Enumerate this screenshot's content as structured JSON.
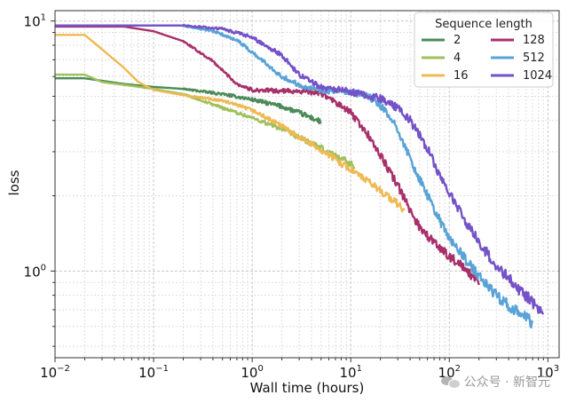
{
  "chart_data": {
    "type": "line",
    "x_scale": "log",
    "y_scale": "log",
    "xlim": [
      0.01,
      1300
    ],
    "ylim": [
      0.45,
      11
    ],
    "xlabel": "Wall time (hours)",
    "ylabel": "loss",
    "x_ticks": [
      {
        "value": 0.01,
        "base": "10",
        "exp": "−2"
      },
      {
        "value": 0.1,
        "base": "10",
        "exp": "−1"
      },
      {
        "value": 1,
        "base": "10",
        "exp": "0"
      },
      {
        "value": 10,
        "base": "10",
        "exp": "1"
      },
      {
        "value": 100,
        "base": "10",
        "exp": "2"
      },
      {
        "value": 1000,
        "base": "10",
        "exp": "3"
      }
    ],
    "y_ticks": [
      {
        "value": 1,
        "base": "10",
        "exp": "0"
      },
      {
        "value": 10,
        "base": "10",
        "exp": "1"
      }
    ],
    "grid": true,
    "legend": {
      "title": "Sequence length",
      "placement": "top-right",
      "columns": 2
    },
    "series": [
      {
        "name": "2",
        "color": "#4b8b57",
        "points": [
          [
            0.01,
            5.9
          ],
          [
            0.02,
            5.9
          ],
          [
            0.05,
            5.6
          ],
          [
            0.1,
            5.45
          ],
          [
            0.2,
            5.35
          ],
          [
            0.5,
            5.1
          ],
          [
            1,
            4.85
          ],
          [
            2,
            4.55
          ],
          [
            3,
            4.3
          ],
          [
            5,
            3.95
          ]
        ]
      },
      {
        "name": "4",
        "color": "#9fc05a",
        "points": [
          [
            0.01,
            6.1
          ],
          [
            0.02,
            6.1
          ],
          [
            0.03,
            5.7
          ],
          [
            0.06,
            5.5
          ],
          [
            0.1,
            5.35
          ],
          [
            0.2,
            5.1
          ],
          [
            0.5,
            4.5
          ],
          [
            1,
            4.1
          ],
          [
            2,
            3.7
          ],
          [
            5,
            3.1
          ],
          [
            10,
            2.7
          ],
          [
            11,
            2.6
          ]
        ]
      },
      {
        "name": "16",
        "color": "#efb954",
        "points": [
          [
            0.01,
            8.8
          ],
          [
            0.02,
            8.8
          ],
          [
            0.03,
            7.7
          ],
          [
            0.05,
            6.5
          ],
          [
            0.07,
            5.7
          ],
          [
            0.1,
            5.3
          ],
          [
            0.2,
            5.05
          ],
          [
            0.5,
            4.8
          ],
          [
            1,
            4.4
          ],
          [
            2,
            3.8
          ],
          [
            5,
            3.05
          ],
          [
            10,
            2.55
          ],
          [
            20,
            2.1
          ],
          [
            30,
            1.85
          ],
          [
            35,
            1.75
          ]
        ]
      },
      {
        "name": "128",
        "color": "#a8306a",
        "points": [
          [
            0.01,
            9.5
          ],
          [
            0.05,
            9.5
          ],
          [
            0.1,
            9.1
          ],
          [
            0.2,
            8.3
          ],
          [
            0.4,
            6.9
          ],
          [
            0.7,
            5.6
          ],
          [
            1,
            5.3
          ],
          [
            2,
            5.25
          ],
          [
            3,
            5.25
          ],
          [
            5,
            5.15
          ],
          [
            10,
            4.3
          ],
          [
            15,
            3.5
          ],
          [
            20,
            2.9
          ],
          [
            30,
            2.2
          ],
          [
            40,
            1.75
          ],
          [
            50,
            1.5
          ],
          [
            70,
            1.3
          ],
          [
            100,
            1.15
          ],
          [
            150,
            1.0
          ],
          [
            200,
            0.88
          ]
        ]
      },
      {
        "name": "512",
        "color": "#5aa3d6",
        "points": [
          [
            0.01,
            9.6
          ],
          [
            0.2,
            9.6
          ],
          [
            0.4,
            9.1
          ],
          [
            0.7,
            8.4
          ],
          [
            1,
            7.5
          ],
          [
            2,
            6.0
          ],
          [
            3,
            5.55
          ],
          [
            5,
            5.3
          ],
          [
            10,
            5.15
          ],
          [
            15,
            5.0
          ],
          [
            20,
            4.6
          ],
          [
            30,
            3.7
          ],
          [
            40,
            2.8
          ],
          [
            60,
            2.0
          ],
          [
            80,
            1.6
          ],
          [
            100,
            1.35
          ],
          [
            150,
            1.1
          ],
          [
            200,
            0.95
          ],
          [
            300,
            0.8
          ],
          [
            500,
            0.68
          ],
          [
            700,
            0.62
          ]
        ]
      },
      {
        "name": "1024",
        "color": "#7452c7",
        "points": [
          [
            0.01,
            9.6
          ],
          [
            0.2,
            9.6
          ],
          [
            0.5,
            9.3
          ],
          [
            1,
            8.6
          ],
          [
            2,
            7.3
          ],
          [
            3,
            6.1
          ],
          [
            5,
            5.45
          ],
          [
            10,
            5.2
          ],
          [
            20,
            4.9
          ],
          [
            30,
            4.5
          ],
          [
            40,
            4.0
          ],
          [
            60,
            3.1
          ],
          [
            80,
            2.4
          ],
          [
            100,
            2.05
          ],
          [
            150,
            1.55
          ],
          [
            200,
            1.3
          ],
          [
            300,
            1.05
          ],
          [
            500,
            0.85
          ],
          [
            700,
            0.75
          ],
          [
            900,
            0.68
          ]
        ]
      }
    ]
  },
  "watermark": {
    "text": "公众号 · 新智元"
  }
}
